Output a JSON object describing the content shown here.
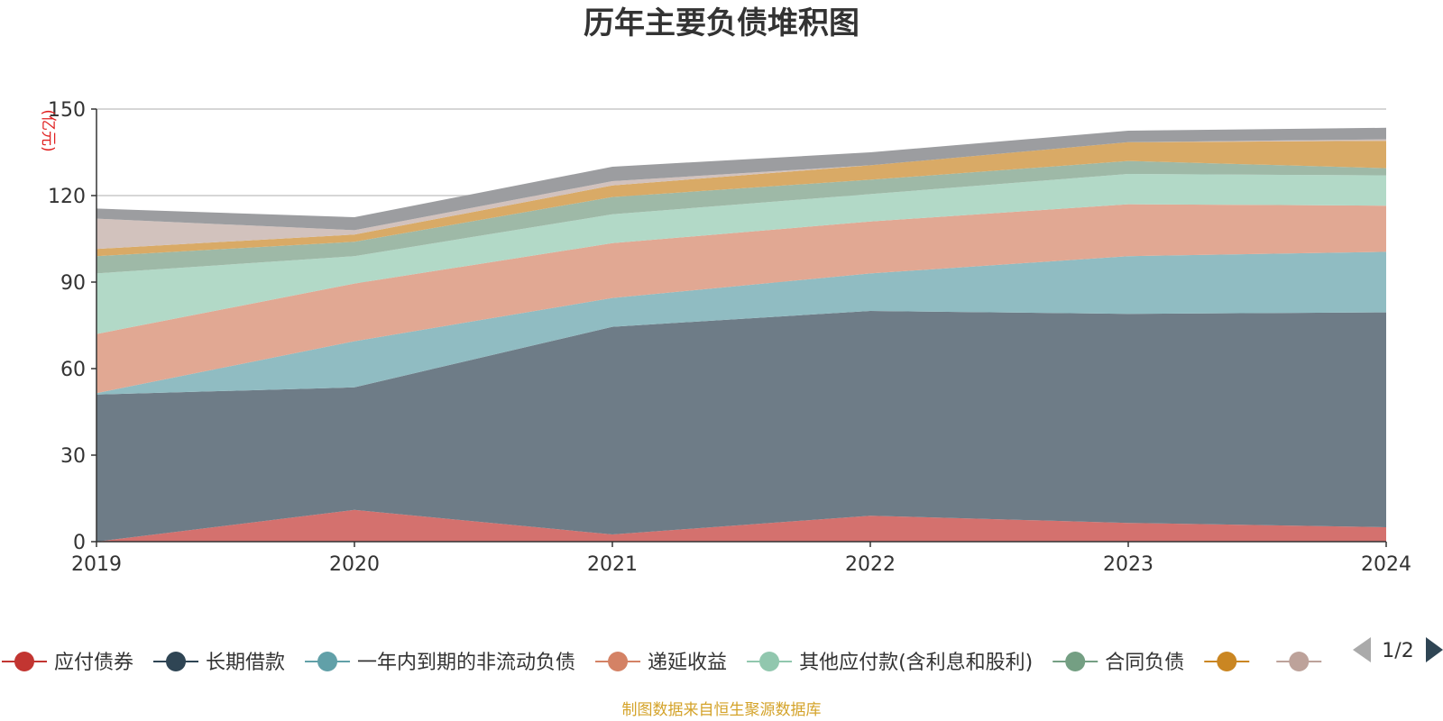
{
  "title": "历年主要负债堆积图",
  "footer": "制图数据来自恒生聚源数据库",
  "legend_page": "1/2",
  "chart_data": {
    "type": "area",
    "stacked": true,
    "title": "历年主要负债堆积图",
    "ylabel": "(亿元)",
    "xlabel": "",
    "x": [
      "2019",
      "2020",
      "2021",
      "2022",
      "2023",
      "2024"
    ],
    "ylim": [
      0,
      150
    ],
    "yticks": [
      0,
      30,
      60,
      90,
      120,
      150
    ],
    "grid": true,
    "legend_position": "bottom",
    "series": [
      {
        "name": "应付债券",
        "color": "#c23531",
        "fill": "#d4716e",
        "values": [
          0,
          11,
          2.5,
          9,
          6.5,
          5
        ]
      },
      {
        "name": "长期借款",
        "color": "#2f4554",
        "fill": "#6e7c87",
        "values": [
          51,
          42.5,
          72,
          71,
          72.5,
          74.5
        ]
      },
      {
        "name": "一年内到期的非流动负债",
        "color": "#61a0a8",
        "fill": "#90bcc2",
        "values": [
          0.5,
          16,
          10,
          13,
          20,
          21
        ]
      },
      {
        "name": "递延收益",
        "color": "#d48265",
        "fill": "#e1a893",
        "values": [
          20.5,
          20,
          19,
          18,
          18,
          16
        ]
      },
      {
        "name": "其他应付款(含利息和股利)",
        "color": "#91c7ae",
        "fill": "#b2d9c7",
        "values": [
          21,
          9.5,
          10,
          9.5,
          10.5,
          10.5
        ]
      },
      {
        "name": "合同负债",
        "color": "#749f83",
        "fill": "#9eb9a7",
        "values": [
          6,
          5,
          6,
          5,
          4.5,
          2.5
        ]
      },
      {
        "name": "",
        "color": "#ca8622",
        "fill": "#d9aa66",
        "values": [
          2.5,
          2.5,
          4,
          5,
          6.5,
          9.5
        ]
      },
      {
        "name": "",
        "color": "#bda29a",
        "fill": "#d2c2bd",
        "values": [
          10.5,
          1.5,
          1.5,
          0,
          0,
          0.5
        ]
      },
      {
        "name": "",
        "color": "#6e7074",
        "fill": "#9c9da0",
        "values": [
          3.5,
          4.5,
          5,
          4.5,
          4,
          4
        ]
      }
    ]
  }
}
